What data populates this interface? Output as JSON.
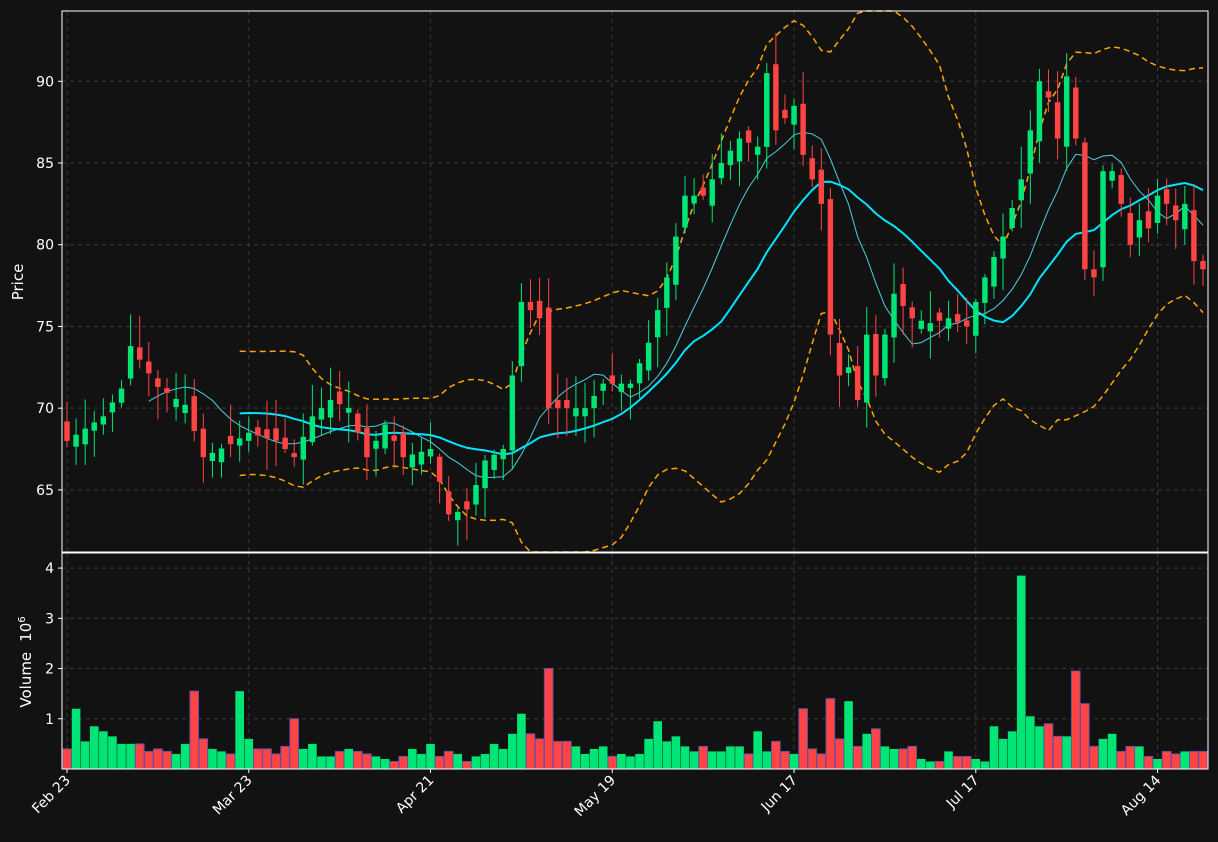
{
  "chart_data": {
    "type": "candlestick",
    "theme": {
      "background": "#121212",
      "up_color": "#00e676",
      "down_color": "#ff4444",
      "grid_color": "#3a3a3a",
      "text_color": "#ffffff",
      "ma_long_color": "#00e5ff",
      "ma_short_color": "#4dd0e1",
      "band_color": "#ffa500"
    },
    "price_panel": {
      "ylabel": "Price",
      "ylim": [
        61.2,
        94.3
      ],
      "yticks": [
        65,
        70,
        75,
        80,
        85,
        90
      ],
      "grid": true
    },
    "volume_panel": {
      "ylabel": "Volume",
      "ylabel_exponent": "6",
      "ylim": [
        0,
        4.3
      ],
      "yticks": [
        1,
        2,
        3,
        4
      ],
      "grid": true
    },
    "x_ticks": [
      {
        "index": 0,
        "label": "Feb 23"
      },
      {
        "index": 20,
        "label": "Mar 23"
      },
      {
        "index": 40,
        "label": "Apr 21"
      },
      {
        "index": 60,
        "label": "May 19"
      },
      {
        "index": 80,
        "label": "Jun 17"
      },
      {
        "index": 100,
        "label": "Jul 17"
      },
      {
        "index": 120,
        "label": "Aug 14"
      }
    ],
    "close_keys": [
      [
        0,
        68.0
      ],
      [
        4,
        69.5
      ],
      [
        6,
        71.2
      ],
      [
        7,
        73.8
      ],
      [
        10,
        71.3
      ],
      [
        13,
        70.2
      ],
      [
        15,
        67.0
      ],
      [
        18,
        67.8
      ],
      [
        20,
        68.5
      ],
      [
        23,
        68.0
      ],
      [
        25,
        67.0
      ],
      [
        27,
        69.5
      ],
      [
        29,
        70.5
      ],
      [
        31,
        70.0
      ],
      [
        33,
        67.0
      ],
      [
        35,
        69.0
      ],
      [
        37,
        67.0
      ],
      [
        40,
        67.5
      ],
      [
        42,
        63.5
      ],
      [
        44,
        63.8
      ],
      [
        46,
        66.8
      ],
      [
        48,
        67.5
      ],
      [
        50,
        76.5
      ],
      [
        52,
        75.5
      ],
      [
        53,
        70.0
      ],
      [
        55,
        70.0
      ],
      [
        57,
        70.0
      ],
      [
        59,
        71.5
      ],
      [
        62,
        71.5
      ],
      [
        64,
        74.0
      ],
      [
        66,
        78.0
      ],
      [
        68,
        83.0
      ],
      [
        70,
        83.0
      ],
      [
        72,
        85.0
      ],
      [
        74,
        86.5
      ],
      [
        76,
        86.0
      ],
      [
        77,
        90.5
      ],
      [
        78,
        87.0
      ],
      [
        80,
        88.5
      ],
      [
        81,
        85.5
      ],
      [
        83,
        82.5
      ],
      [
        84,
        74.5
      ],
      [
        85,
        72.0
      ],
      [
        86,
        72.5
      ],
      [
        87,
        70.5
      ],
      [
        88,
        74.5
      ],
      [
        89,
        72.0
      ],
      [
        91,
        77.0
      ],
      [
        93,
        75.5
      ],
      [
        95,
        75.2
      ],
      [
        97,
        75.5
      ],
      [
        99,
        75.0
      ],
      [
        101,
        78.0
      ],
      [
        103,
        80.5
      ],
      [
        105,
        84.0
      ],
      [
        106,
        87.0
      ],
      [
        107,
        90.0
      ],
      [
        108,
        89.0
      ],
      [
        109,
        86.5
      ],
      [
        110,
        90.3
      ],
      [
        111,
        86.5
      ],
      [
        112,
        78.5
      ],
      [
        113,
        78.0
      ],
      [
        114,
        84.5
      ],
      [
        115,
        84.5
      ],
      [
        116,
        82.5
      ],
      [
        117,
        80.0
      ],
      [
        118,
        81.5
      ],
      [
        119,
        81.0
      ],
      [
        120,
        83.0
      ],
      [
        121,
        82.5
      ],
      [
        122,
        81.5
      ],
      [
        123,
        82.5
      ],
      [
        124,
        79.0
      ],
      [
        125,
        78.5
      ]
    ],
    "volume_keys": [
      [
        0,
        0.4
      ],
      [
        1,
        1.2
      ],
      [
        2,
        0.55
      ],
      [
        3,
        0.85
      ],
      [
        4,
        0.75
      ],
      [
        5,
        0.65
      ],
      [
        6,
        0.5
      ],
      [
        7,
        0.5
      ],
      [
        8,
        0.5
      ],
      [
        9,
        0.35
      ],
      [
        10,
        0.4
      ],
      [
        11,
        0.35
      ],
      [
        12,
        0.3
      ],
      [
        13,
        0.5
      ],
      [
        14,
        1.55
      ],
      [
        15,
        0.6
      ],
      [
        16,
        0.4
      ],
      [
        17,
        0.35
      ],
      [
        18,
        0.3
      ],
      [
        19,
        1.55
      ],
      [
        20,
        0.6
      ],
      [
        21,
        0.4
      ],
      [
        22,
        0.4
      ],
      [
        23,
        0.3
      ],
      [
        24,
        0.45
      ],
      [
        25,
        1.0
      ],
      [
        26,
        0.4
      ],
      [
        27,
        0.5
      ],
      [
        28,
        0.25
      ],
      [
        29,
        0.25
      ],
      [
        30,
        0.35
      ],
      [
        31,
        0.4
      ],
      [
        32,
        0.35
      ],
      [
        33,
        0.3
      ],
      [
        34,
        0.25
      ],
      [
        35,
        0.2
      ],
      [
        36,
        0.15
      ],
      [
        37,
        0.25
      ],
      [
        38,
        0.4
      ],
      [
        39,
        0.3
      ],
      [
        40,
        0.5
      ],
      [
        41,
        0.25
      ],
      [
        42,
        0.35
      ],
      [
        43,
        0.3
      ],
      [
        44,
        0.15
      ],
      [
        45,
        0.25
      ],
      [
        46,
        0.3
      ],
      [
        47,
        0.5
      ],
      [
        48,
        0.4
      ],
      [
        49,
        0.7
      ],
      [
        50,
        1.1
      ],
      [
        51,
        0.7
      ],
      [
        52,
        0.6
      ],
      [
        53,
        2.0
      ],
      [
        54,
        0.55
      ],
      [
        55,
        0.55
      ],
      [
        56,
        0.45
      ],
      [
        57,
        0.3
      ],
      [
        58,
        0.4
      ],
      [
        59,
        0.45
      ],
      [
        60,
        0.25
      ],
      [
        61,
        0.3
      ],
      [
        62,
        0.25
      ],
      [
        63,
        0.3
      ],
      [
        64,
        0.6
      ],
      [
        65,
        0.95
      ],
      [
        66,
        0.55
      ],
      [
        67,
        0.65
      ],
      [
        68,
        0.45
      ],
      [
        69,
        0.35
      ],
      [
        70,
        0.45
      ],
      [
        71,
        0.35
      ],
      [
        72,
        0.35
      ],
      [
        73,
        0.45
      ],
      [
        74,
        0.45
      ],
      [
        75,
        0.3
      ],
      [
        76,
        0.75
      ],
      [
        77,
        0.35
      ],
      [
        78,
        0.55
      ],
      [
        79,
        0.35
      ],
      [
        80,
        0.3
      ],
      [
        81,
        1.2
      ],
      [
        82,
        0.4
      ],
      [
        83,
        0.3
      ],
      [
        84,
        1.4
      ],
      [
        85,
        0.6
      ],
      [
        86,
        1.35
      ],
      [
        87,
        0.45
      ],
      [
        88,
        0.7
      ],
      [
        89,
        0.8
      ],
      [
        90,
        0.45
      ],
      [
        91,
        0.4
      ],
      [
        92,
        0.4
      ],
      [
        93,
        0.45
      ],
      [
        94,
        0.2
      ],
      [
        95,
        0.15
      ],
      [
        96,
        0.15
      ],
      [
        97,
        0.35
      ],
      [
        98,
        0.25
      ],
      [
        99,
        0.25
      ],
      [
        100,
        0.2
      ],
      [
        101,
        0.15
      ],
      [
        102,
        0.85
      ],
      [
        103,
        0.6
      ],
      [
        104,
        0.75
      ],
      [
        105,
        3.85
      ],
      [
        106,
        1.05
      ],
      [
        107,
        0.85
      ],
      [
        108,
        0.9
      ],
      [
        109,
        0.65
      ],
      [
        110,
        0.65
      ],
      [
        111,
        1.95
      ],
      [
        112,
        1.3
      ],
      [
        113,
        0.45
      ],
      [
        114,
        0.6
      ],
      [
        115,
        0.7
      ],
      [
        116,
        0.35
      ],
      [
        117,
        0.45
      ],
      [
        118,
        0.45
      ],
      [
        119,
        0.25
      ],
      [
        120,
        0.2
      ],
      [
        121,
        0.35
      ],
      [
        122,
        0.3
      ],
      [
        123,
        0.35
      ],
      [
        124,
        0.35
      ],
      [
        125,
        0.35
      ]
    ],
    "n_bars": 126,
    "moving_averages": [
      {
        "window": 10,
        "style": "thin"
      },
      {
        "window": 20,
        "style": "thick"
      }
    ],
    "bollinger_bands": {
      "window": 20,
      "std": 2
    }
  }
}
